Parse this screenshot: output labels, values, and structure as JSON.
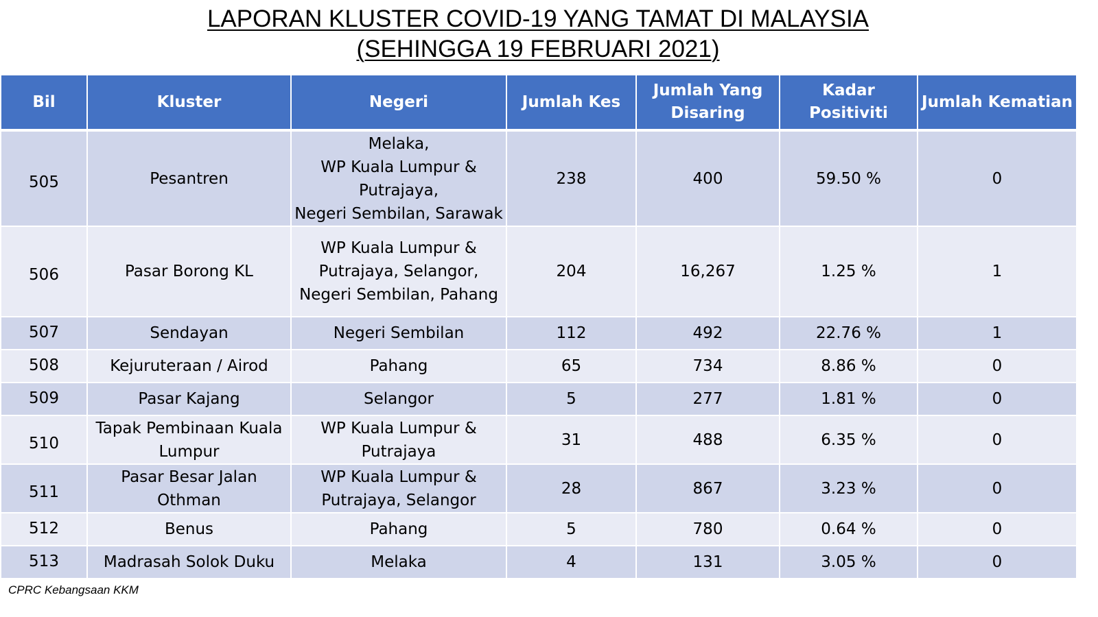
{
  "title": {
    "line1": "LAPORAN KLUSTER COVID-19 YANG TAMAT DI MALAYSIA",
    "line2": "(SEHINGGA 19 FEBRUARI 2021)"
  },
  "table": {
    "headers": [
      "Bil",
      "Kluster",
      "Negeri",
      "Jumlah Kes",
      "Jumlah Yang Disaring",
      "Kadar Positiviti",
      "Jumlah Kematian"
    ],
    "header_jumlah_disaring": [
      "Jumlah Yang",
      "Disaring"
    ],
    "rows": [
      {
        "bil": "505",
        "kluster": [
          "Pesantren"
        ],
        "negeri": [
          "Melaka,",
          "WP Kuala Lumpur &",
          "Putrajaya,",
          "Negeri Sembilan, Sarawak"
        ],
        "kes": "238",
        "disaring": "400",
        "positiviti": "59.50 %",
        "kematian": "0"
      },
      {
        "bil": "506",
        "kluster": [
          "Pasar Borong KL"
        ],
        "negeri": [
          "WP Kuala Lumpur &",
          "Putrajaya,  Selangor,",
          "Negeri Sembilan, Pahang"
        ],
        "kes": "204",
        "disaring": "16,267",
        "positiviti": "1.25 %",
        "kematian": "1"
      },
      {
        "bil": "507",
        "kluster": [
          "Sendayan"
        ],
        "negeri": [
          "Negeri Sembilan"
        ],
        "kes": "112",
        "disaring": "492",
        "positiviti": "22.76 %",
        "kematian": "1"
      },
      {
        "bil": "508",
        "kluster": [
          "Kejuruteraan / Airod"
        ],
        "negeri": [
          "Pahang"
        ],
        "kes": "65",
        "disaring": "734",
        "positiviti": "8.86 %",
        "kematian": "0"
      },
      {
        "bil": "509",
        "kluster": [
          "Pasar Kajang"
        ],
        "negeri": [
          "Selangor"
        ],
        "kes": "5",
        "disaring": "277",
        "positiviti": "1.81 %",
        "kematian": "0"
      },
      {
        "bil": "510",
        "kluster": [
          "Tapak Pembinaan Kuala",
          "Lumpur"
        ],
        "negeri": [
          "WP Kuala Lumpur &",
          "Putrajaya"
        ],
        "kes": "31",
        "disaring": "488",
        "positiviti": "6.35 %",
        "kematian": "0"
      },
      {
        "bil": "511",
        "kluster": [
          "Pasar Besar Jalan Othman"
        ],
        "negeri": [
          "WP Kuala Lumpur &",
          "Putrajaya,  Selangor"
        ],
        "kes": "28",
        "disaring": "867",
        "positiviti": "3.23 %",
        "kematian": "0"
      },
      {
        "bil": "512",
        "kluster": [
          "Benus"
        ],
        "negeri": [
          "Pahang"
        ],
        "kes": "5",
        "disaring": "780",
        "positiviti": "0.64 %",
        "kematian": "0"
      },
      {
        "bil": "513",
        "kluster": [
          "Madrasah Solok Duku"
        ],
        "negeri": [
          "Melaka"
        ],
        "kes": "4",
        "disaring": "131",
        "positiviti": "3.05 %",
        "kematian": "0"
      }
    ]
  },
  "source_note": "CPRC Kebangsaan KKM",
  "colors": {
    "header_bg": "#4472c4",
    "row_dark": "#cfd5ea",
    "row_light": "#e9ebf5"
  }
}
